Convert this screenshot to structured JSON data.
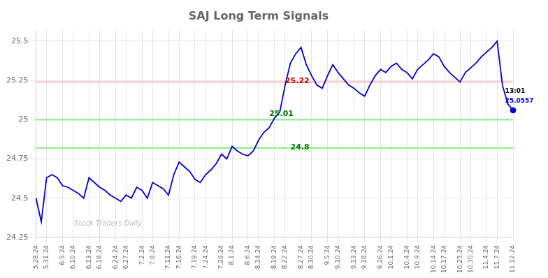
{
  "chart_data": {
    "type": "line",
    "title": "SAJ Long Term Signals",
    "categories": [
      "5.28.24",
      null,
      "5.31.24",
      null,
      null,
      "6.5.24",
      null,
      "6.10.24",
      null,
      null,
      "6.13.24",
      null,
      "6.18.24",
      null,
      null,
      "6.24.24",
      null,
      "6.27.24",
      null,
      null,
      "7.2.24",
      null,
      "7.8.24",
      null,
      null,
      "7.11.24",
      null,
      "7.16.24",
      null,
      null,
      "7.19.24",
      null,
      "7.24.24",
      null,
      null,
      "7.29.24",
      null,
      "8.1.24",
      null,
      null,
      "8.6.24",
      null,
      "8.14.24",
      null,
      null,
      "8.19.24",
      null,
      "8.22.24",
      null,
      null,
      "8.27.24",
      null,
      "8.30.24",
      null,
      null,
      "9.5.24",
      null,
      "9.10.24",
      null,
      null,
      "9.13.24",
      null,
      "9.18.24",
      null,
      null,
      "9.26.24",
      null,
      "10.1.24",
      null,
      null,
      "10.4.24",
      null,
      "10.9.24",
      null,
      null,
      "10.14.24",
      null,
      "10.17.24",
      null,
      null,
      "10.25.24",
      null,
      "10.30.24",
      null,
      null,
      "11.4.24",
      null,
      "11.7.24",
      null,
      null,
      "11.12.24"
    ],
    "values": [
      24.5,
      24.35,
      24.63,
      24.65,
      24.63,
      24.58,
      24.57,
      24.55,
      24.53,
      24.5,
      24.63,
      24.6,
      24.57,
      24.55,
      24.52,
      24.5,
      24.48,
      24.52,
      24.5,
      24.57,
      24.55,
      24.5,
      24.6,
      24.58,
      24.56,
      24.52,
      24.65,
      24.73,
      24.7,
      24.67,
      24.62,
      24.6,
      24.65,
      24.68,
      24.72,
      24.78,
      24.75,
      24.83,
      24.8,
      24.78,
      24.77,
      24.8,
      24.87,
      24.92,
      24.95,
      25.01,
      25.05,
      25.22,
      25.36,
      25.42,
      25.46,
      25.35,
      25.28,
      25.22,
      25.2,
      25.28,
      25.35,
      25.3,
      25.26,
      25.22,
      25.2,
      25.17,
      25.15,
      25.22,
      25.28,
      25.32,
      25.3,
      25.34,
      25.36,
      25.32,
      25.3,
      25.26,
      25.32,
      25.35,
      25.38,
      25.42,
      25.4,
      25.34,
      25.3,
      25.27,
      25.24,
      25.3,
      25.33,
      25.36,
      25.4,
      25.43,
      25.46,
      25.5,
      25.22,
      25.1,
      25.06
    ],
    "color": "#0000cc",
    "ylim": [
      24.25,
      25.57
    ],
    "yticks": [
      24.25,
      24.5,
      24.75,
      25,
      25.25,
      25.5
    ],
    "grid": true,
    "reference_lines": [
      {
        "value": 25.24,
        "color": "#ffcccc"
      },
      {
        "value": 25.0,
        "color": "#99ee99"
      },
      {
        "value": 24.82,
        "color": "#99ee99"
      }
    ],
    "annotations": [
      {
        "text": "25.22",
        "x": 47,
        "y": 25.22,
        "color": "#cc0000"
      },
      {
        "text": "25.01",
        "x": 44,
        "y": 25.01,
        "color": "#007700"
      },
      {
        "text": "24.8",
        "x": 48,
        "y": 24.8,
        "color": "#007700"
      },
      {
        "text": "13:01",
        "x": 88.5,
        "y": 25.16,
        "color": "#000000"
      },
      {
        "text": "25.0557",
        "x": 88.5,
        "y": 25.1,
        "color": "#0000cc"
      }
    ],
    "watermark": "Stock Traders Daily"
  }
}
